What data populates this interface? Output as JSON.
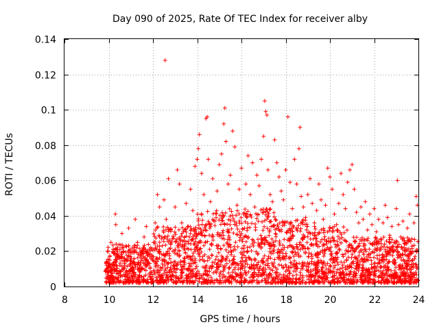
{
  "chart_data": {
    "type": "scatter",
    "title": "Day 090 of 2025, Rate Of TEC Index for receiver alby",
    "xlabel": "GPS time / hours",
    "ylabel": "ROTI / TECUs",
    "xlim": [
      8,
      24
    ],
    "ylim": [
      0,
      0.14
    ],
    "x_ticks": [
      "8",
      "10",
      "12",
      "14",
      "16",
      "18",
      "20",
      "22",
      "24"
    ],
    "y_ticks": [
      "0",
      "0.02",
      "0.04",
      "0.06",
      "0.08",
      "0.1",
      "0.12",
      "0.14"
    ],
    "grid": true,
    "marker": "+",
    "color": "#ff0000",
    "series": [
      {
        "name": "ROTI",
        "points": [
          [
            9.9,
            0.012
          ],
          [
            9.95,
            0.02
          ],
          [
            10.0,
            0.008
          ],
          [
            10.05,
            0.015
          ],
          [
            10.1,
            0.025
          ],
          [
            10.15,
            0.01
          ],
          [
            10.3,
            0.041
          ],
          [
            10.32,
            0.035
          ],
          [
            10.35,
            0.018
          ],
          [
            10.4,
            0.022
          ],
          [
            10.5,
            0.012
          ],
          [
            10.6,
            0.03
          ],
          [
            10.7,
            0.016
          ],
          [
            10.8,
            0.009
          ],
          [
            10.9,
            0.033
          ],
          [
            11.0,
            0.02
          ],
          [
            11.1,
            0.014
          ],
          [
            11.2,
            0.038
          ],
          [
            11.3,
            0.025
          ],
          [
            11.4,
            0.011
          ],
          [
            11.5,
            0.019
          ],
          [
            11.6,
            0.028
          ],
          [
            11.7,
            0.034
          ],
          [
            11.8,
            0.013
          ],
          [
            11.9,
            0.022
          ],
          [
            12.0,
            0.015
          ],
          [
            12.1,
            0.036
          ],
          [
            12.2,
            0.052
          ],
          [
            12.3,
            0.045
          ],
          [
            12.4,
            0.028
          ],
          [
            12.5,
            0.049
          ],
          [
            12.55,
            0.128
          ],
          [
            12.6,
            0.038
          ],
          [
            12.7,
            0.061
          ],
          [
            12.8,
            0.032
          ],
          [
            12.9,
            0.02
          ],
          [
            13.0,
            0.045
          ],
          [
            13.1,
            0.066
          ],
          [
            13.2,
            0.058
          ],
          [
            13.3,
            0.036
          ],
          [
            13.4,
            0.026
          ],
          [
            13.5,
            0.047
          ],
          [
            13.6,
            0.034
          ],
          [
            13.7,
            0.055
          ],
          [
            13.8,
            0.043
          ],
          [
            13.9,
            0.068
          ],
          [
            14.0,
            0.072
          ],
          [
            14.05,
            0.078
          ],
          [
            14.1,
            0.086
          ],
          [
            14.2,
            0.064
          ],
          [
            14.3,
            0.052
          ],
          [
            14.4,
            0.095
          ],
          [
            14.45,
            0.096
          ],
          [
            14.5,
            0.072
          ],
          [
            14.6,
            0.048
          ],
          [
            14.7,
            0.061
          ],
          [
            14.8,
            0.037
          ],
          [
            14.9,
            0.054
          ],
          [
            15.0,
            0.069
          ],
          [
            15.1,
            0.075
          ],
          [
            15.2,
            0.092
          ],
          [
            15.25,
            0.101
          ],
          [
            15.3,
            0.082
          ],
          [
            15.4,
            0.058
          ],
          [
            15.5,
            0.063
          ],
          [
            15.6,
            0.088
          ],
          [
            15.7,
            0.079
          ],
          [
            15.8,
            0.046
          ],
          [
            15.9,
            0.055
          ],
          [
            16.0,
            0.067
          ],
          [
            16.1,
            0.041
          ],
          [
            16.2,
            0.058
          ],
          [
            16.3,
            0.074
          ],
          [
            16.4,
            0.052
          ],
          [
            16.5,
            0.07
          ],
          [
            16.6,
            0.045
          ],
          [
            16.7,
            0.063
          ],
          [
            16.8,
            0.057
          ],
          [
            16.9,
            0.072
          ],
          [
            17.0,
            0.085
          ],
          [
            17.05,
            0.105
          ],
          [
            17.1,
            0.099
          ],
          [
            17.15,
            0.097
          ],
          [
            17.2,
            0.066
          ],
          [
            17.3,
            0.052
          ],
          [
            17.4,
            0.048
          ],
          [
            17.5,
            0.083
          ],
          [
            17.6,
            0.07
          ],
          [
            17.7,
            0.062
          ],
          [
            17.8,
            0.054
          ],
          [
            17.9,
            0.049
          ],
          [
            18.0,
            0.066
          ],
          [
            18.1,
            0.096
          ],
          [
            18.2,
            0.059
          ],
          [
            18.3,
            0.044
          ],
          [
            18.4,
            0.072
          ],
          [
            18.5,
            0.058
          ],
          [
            18.6,
            0.078
          ],
          [
            18.65,
            0.09
          ],
          [
            18.7,
            0.051
          ],
          [
            18.8,
            0.045
          ],
          [
            18.9,
            0.039
          ],
          [
            19.0,
            0.052
          ],
          [
            19.1,
            0.061
          ],
          [
            19.2,
            0.047
          ],
          [
            19.3,
            0.036
          ],
          [
            19.4,
            0.043
          ],
          [
            19.5,
            0.058
          ],
          [
            19.6,
            0.049
          ],
          [
            19.7,
            0.038
          ],
          [
            19.8,
            0.046
          ],
          [
            19.9,
            0.067
          ],
          [
            20.0,
            0.062
          ],
          [
            20.1,
            0.055
          ],
          [
            20.2,
            0.041
          ],
          [
            20.3,
            0.035
          ],
          [
            20.4,
            0.047
          ],
          [
            20.5,
            0.064
          ],
          [
            20.6,
            0.052
          ],
          [
            20.7,
            0.044
          ],
          [
            20.8,
            0.059
          ],
          [
            20.9,
            0.066
          ],
          [
            21.0,
            0.069
          ],
          [
            21.1,
            0.055
          ],
          [
            21.2,
            0.042
          ],
          [
            21.3,
            0.036
          ],
          [
            21.4,
            0.045
          ],
          [
            21.5,
            0.038
          ],
          [
            21.6,
            0.048
          ],
          [
            21.7,
            0.032
          ],
          [
            21.8,
            0.041
          ],
          [
            21.9,
            0.035
          ],
          [
            22.0,
            0.044
          ],
          [
            22.1,
            0.031
          ],
          [
            22.2,
            0.038
          ],
          [
            22.3,
            0.027
          ],
          [
            22.4,
            0.036
          ],
          [
            22.5,
            0.046
          ],
          [
            22.6,
            0.039
          ],
          [
            22.7,
            0.029
          ],
          [
            22.8,
            0.034
          ],
          [
            22.9,
            0.025
          ],
          [
            23.0,
            0.044
          ],
          [
            23.05,
            0.06
          ],
          [
            23.1,
            0.035
          ],
          [
            23.2,
            0.028
          ],
          [
            23.3,
            0.037
          ],
          [
            23.4,
            0.024
          ],
          [
            23.5,
            0.033
          ],
          [
            23.6,
            0.041
          ],
          [
            23.7,
            0.027
          ],
          [
            23.8,
            0.036
          ],
          [
            23.9,
            0.051
          ],
          [
            23.95,
            0.046
          ]
        ]
      }
    ]
  }
}
